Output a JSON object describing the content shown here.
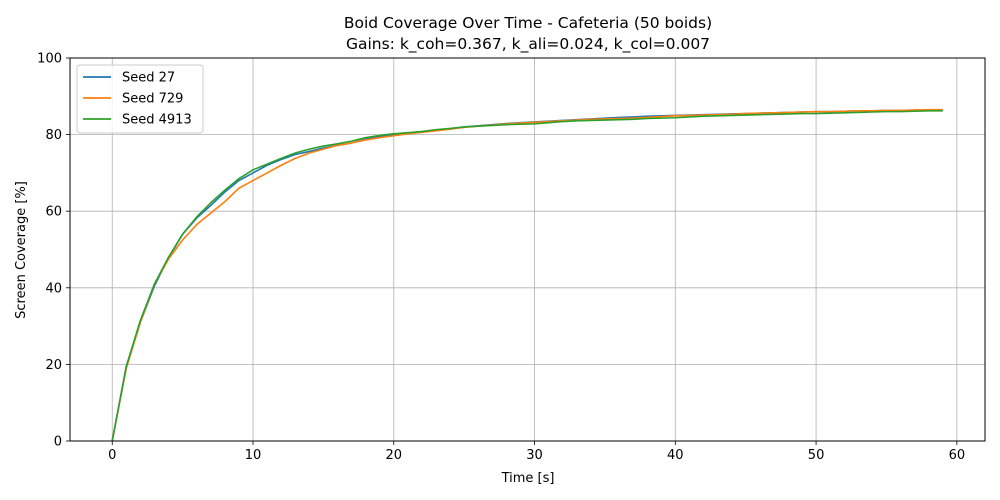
{
  "chart_data": {
    "type": "line",
    "title": "Boid Coverage Over Time - Cafeteria  (50 boids)",
    "subtitle": "Gains: k_coh=0.367, k_ali=0.024, k_col=0.007",
    "xlabel": "Time [s]",
    "ylabel": "Screen Coverage [%]",
    "xlim": [
      -3,
      62
    ],
    "ylim": [
      0,
      100
    ],
    "x_ticks": [
      0,
      10,
      20,
      30,
      40,
      50,
      60
    ],
    "y_ticks": [
      0,
      20,
      40,
      60,
      80,
      100
    ],
    "grid": true,
    "legend_position": "top-left",
    "x": [
      0,
      1,
      2,
      3,
      4,
      5,
      6,
      7,
      8,
      9,
      10,
      11,
      12,
      13,
      14,
      15,
      16,
      17,
      18,
      19,
      20,
      21,
      22,
      23,
      24,
      25,
      26,
      27,
      28,
      29,
      30,
      31,
      32,
      33,
      34,
      35,
      36,
      37,
      38,
      39,
      40,
      41,
      42,
      43,
      44,
      45,
      46,
      47,
      48,
      49,
      50,
      51,
      52,
      53,
      54,
      55,
      56,
      57,
      58,
      59
    ],
    "series": [
      {
        "name": "Seed 27",
        "color": "#1f77b4",
        "values": [
          0,
          19.5,
          31,
          40.5,
          47.8,
          54,
          58.2,
          61.5,
          65,
          68,
          70,
          72,
          73.5,
          74.8,
          75.6,
          76.5,
          77.2,
          77.8,
          78.8,
          79.5,
          80,
          80.4,
          80.8,
          81.2,
          81.5,
          82,
          82.3,
          82.6,
          82.9,
          83.1,
          83.3,
          83.5,
          83.7,
          83.9,
          84.1,
          84.3,
          84.5,
          84.6,
          84.8,
          84.9,
          85,
          85.1,
          85.2,
          85.3,
          85.4,
          85.5,
          85.6,
          85.7,
          85.8,
          85.9,
          86,
          86,
          86.1,
          86.2,
          86.2,
          86.3,
          86.3,
          86.4,
          86.4,
          86.4
        ]
      },
      {
        "name": "Seed 729",
        "color": "#ff7f0e",
        "values": [
          0,
          19,
          31,
          41,
          47.5,
          52.5,
          56.5,
          59.5,
          62.5,
          66,
          68,
          70,
          72,
          73.8,
          75.2,
          76.2,
          77.2,
          77.8,
          78.6,
          79.2,
          79.7,
          80.2,
          80.6,
          81,
          81.4,
          81.9,
          82.2,
          82.5,
          82.8,
          83,
          83.2,
          83.4,
          83.6,
          83.8,
          84,
          84.1,
          84.2,
          84.3,
          84.5,
          84.7,
          84.9,
          85,
          85.1,
          85.2,
          85.3,
          85.5,
          85.6,
          85.7,
          85.8,
          85.9,
          86,
          86,
          86.1,
          86.2,
          86.2,
          86.3,
          86.3,
          86.4,
          86.5,
          86.5
        ]
      },
      {
        "name": "Seed 4913",
        "color": "#2ca02c",
        "values": [
          0,
          19.5,
          31.5,
          41,
          48,
          54,
          58.5,
          62.2,
          65.5,
          68.5,
          70.8,
          72.3,
          73.8,
          75.2,
          76.2,
          77,
          77.6,
          78.3,
          79.2,
          79.8,
          80.2,
          80.5,
          80.8,
          81.3,
          81.6,
          82,
          82.2,
          82.4,
          82.6,
          82.7,
          82.8,
          83.1,
          83.4,
          83.6,
          83.7,
          83.8,
          83.9,
          84,
          84.2,
          84.3,
          84.4,
          84.6,
          84.8,
          84.9,
          85,
          85.1,
          85.2,
          85.3,
          85.4,
          85.5,
          85.5,
          85.6,
          85.7,
          85.8,
          85.9,
          86,
          86,
          86.1,
          86.2,
          86.2
        ]
      }
    ]
  }
}
